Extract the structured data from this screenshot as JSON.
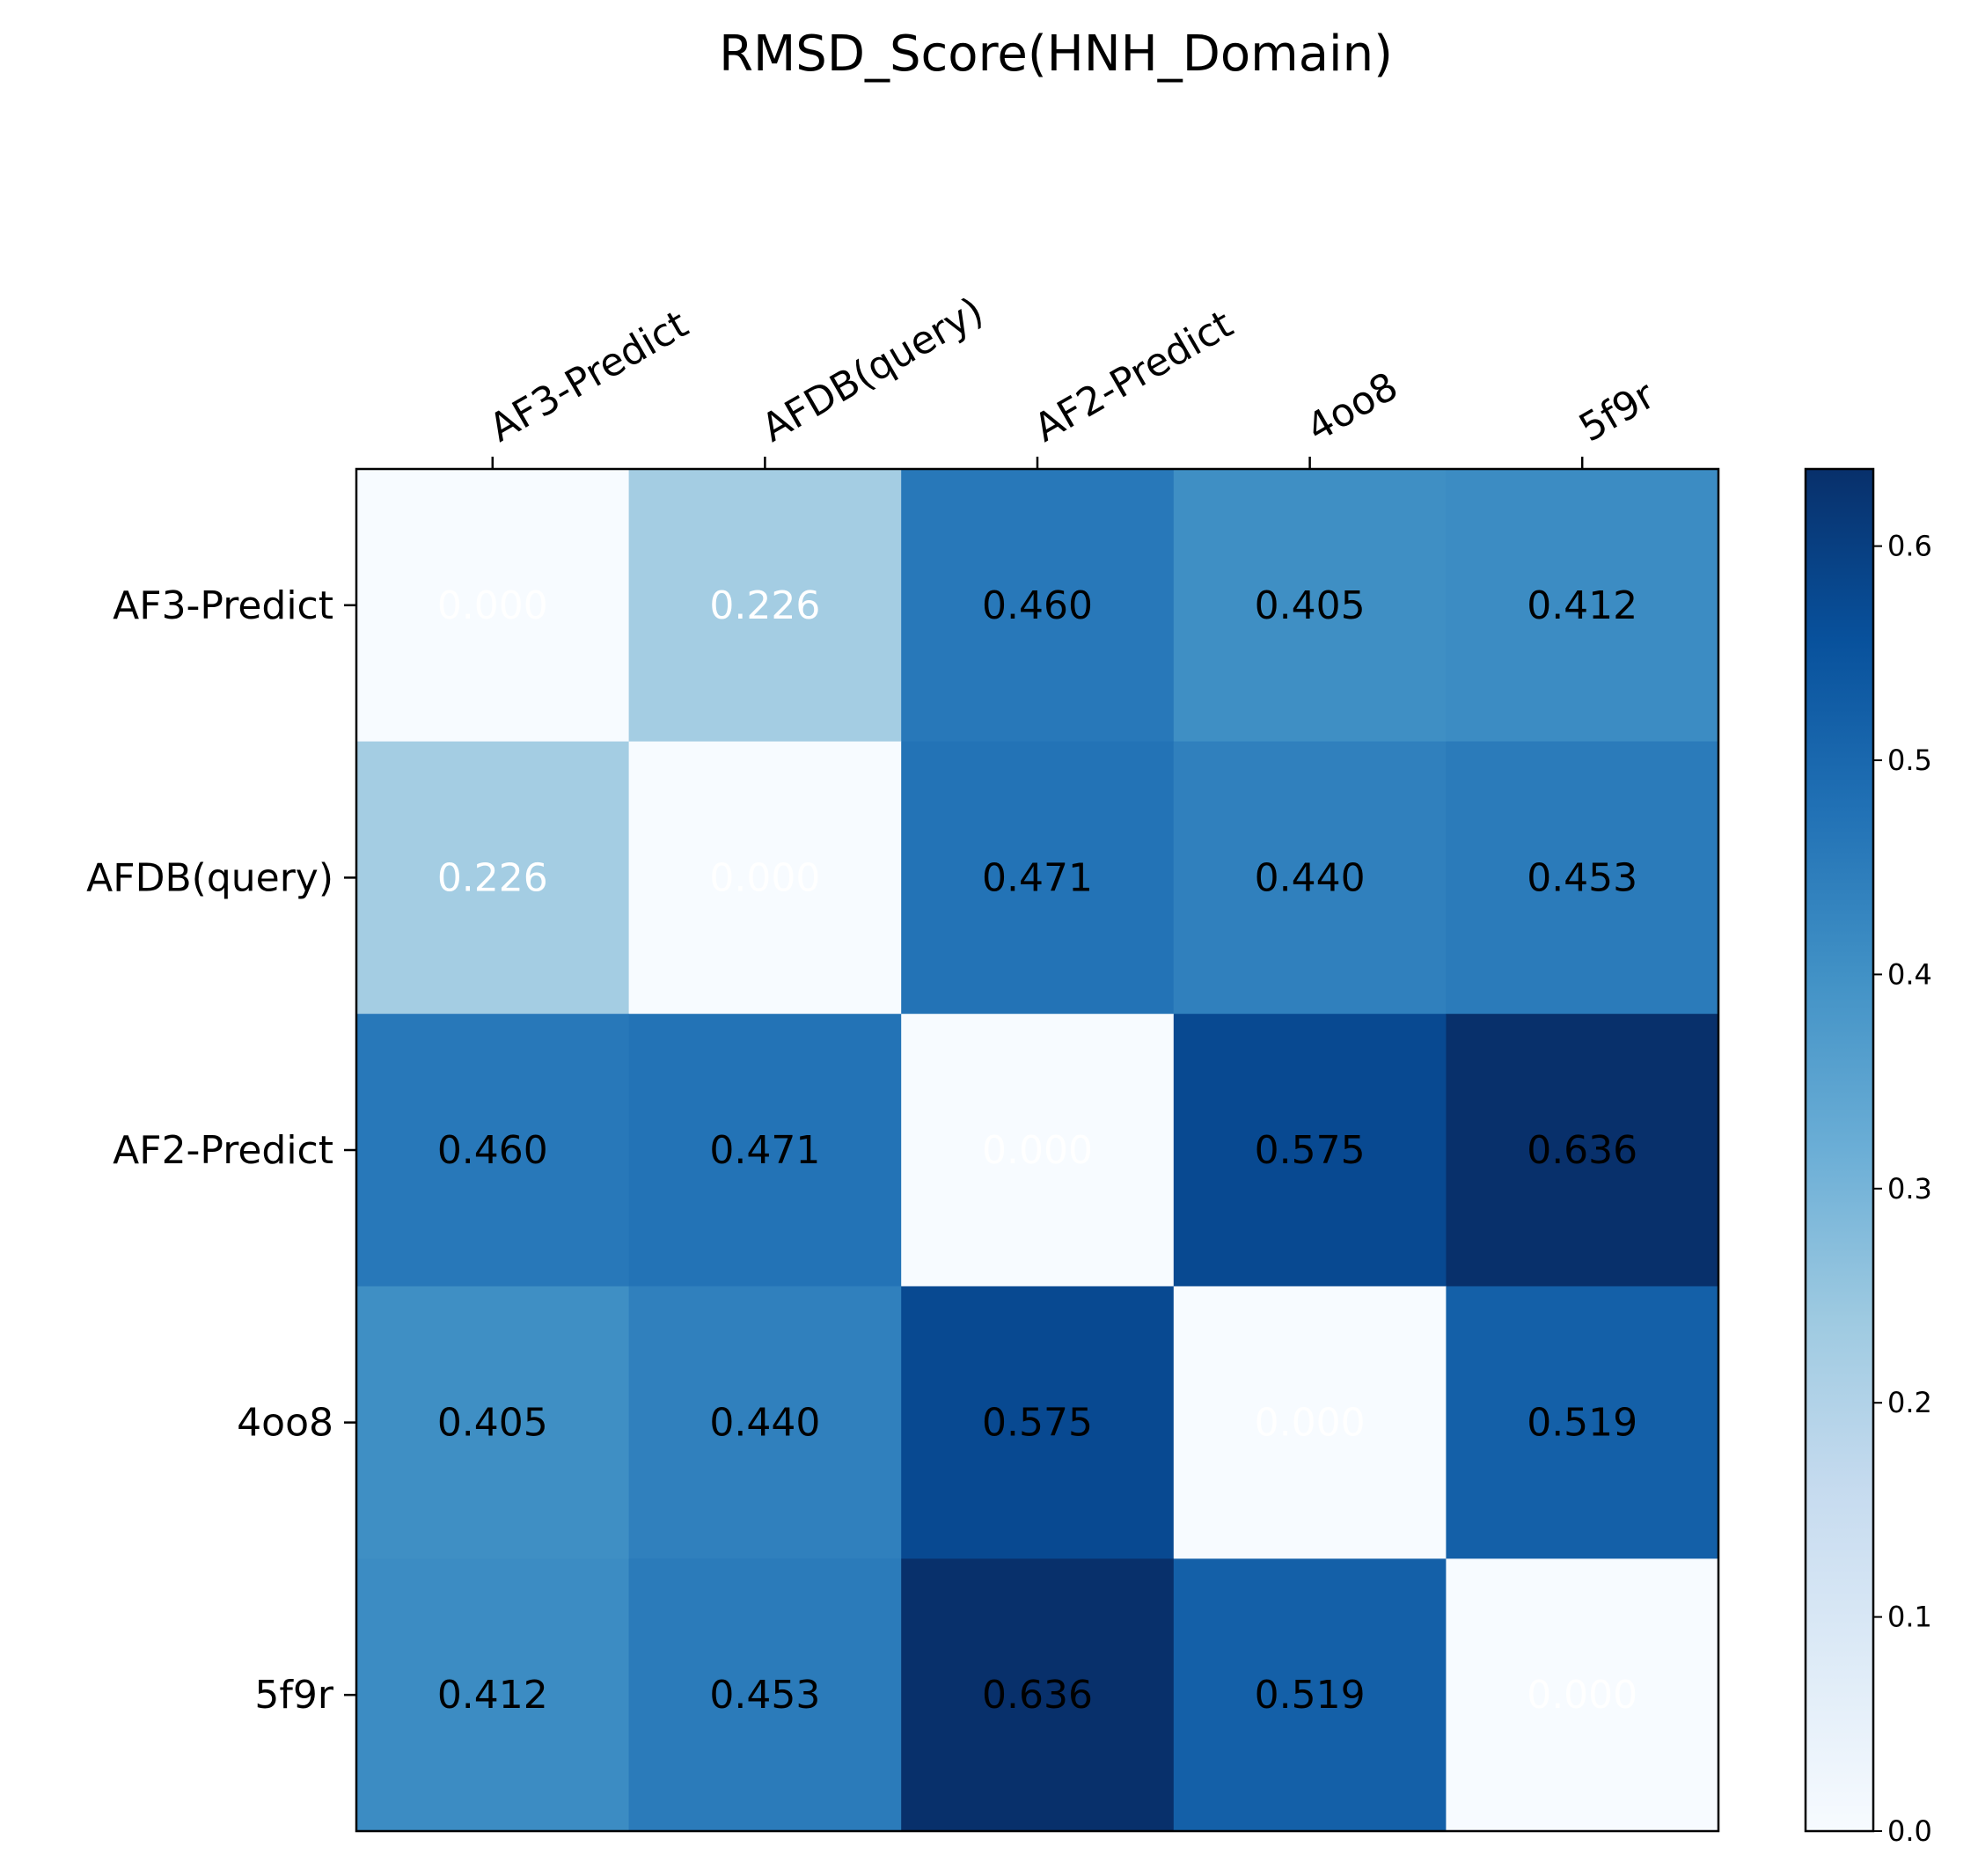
{
  "chart_data": {
    "type": "heatmap",
    "title": "RMSD_Score(HNH_Domain)",
    "x_categories": [
      "AF3-Predict",
      "AFDB(query)",
      "AF2-Predict",
      "4oo8",
      "5f9r"
    ],
    "y_categories": [
      "AF3-Predict",
      "AFDB(query)",
      "AF2-Predict",
      "4oo8",
      "5f9r"
    ],
    "values": [
      [
        0.0,
        0.226,
        0.46,
        0.405,
        0.412
      ],
      [
        0.226,
        0.0,
        0.471,
        0.44,
        0.453
      ],
      [
        0.46,
        0.471,
        0.0,
        0.575,
        0.636
      ],
      [
        0.405,
        0.44,
        0.575,
        0.0,
        0.519
      ],
      [
        0.412,
        0.453,
        0.636,
        0.519,
        0.0
      ]
    ],
    "value_labels": [
      [
        "0.000",
        "0.226",
        "0.460",
        "0.405",
        "0.412"
      ],
      [
        "0.226",
        "0.000",
        "0.471",
        "0.440",
        "0.453"
      ],
      [
        "0.460",
        "0.471",
        "0.000",
        "0.575",
        "0.636"
      ],
      [
        "0.405",
        "0.440",
        "0.575",
        "0.000",
        "0.519"
      ],
      [
        "0.412",
        "0.453",
        "0.636",
        "0.519",
        "0.000"
      ]
    ],
    "colormap": "Blues",
    "colorbar_range": [
      0.0,
      0.636
    ],
    "colorbar_ticks": [
      "0.0",
      "0.1",
      "0.2",
      "0.3",
      "0.4",
      "0.5",
      "0.6"
    ],
    "x_tick_position": "top",
    "label_color_light": "#ffffff",
    "label_color_dark": "#000000"
  }
}
